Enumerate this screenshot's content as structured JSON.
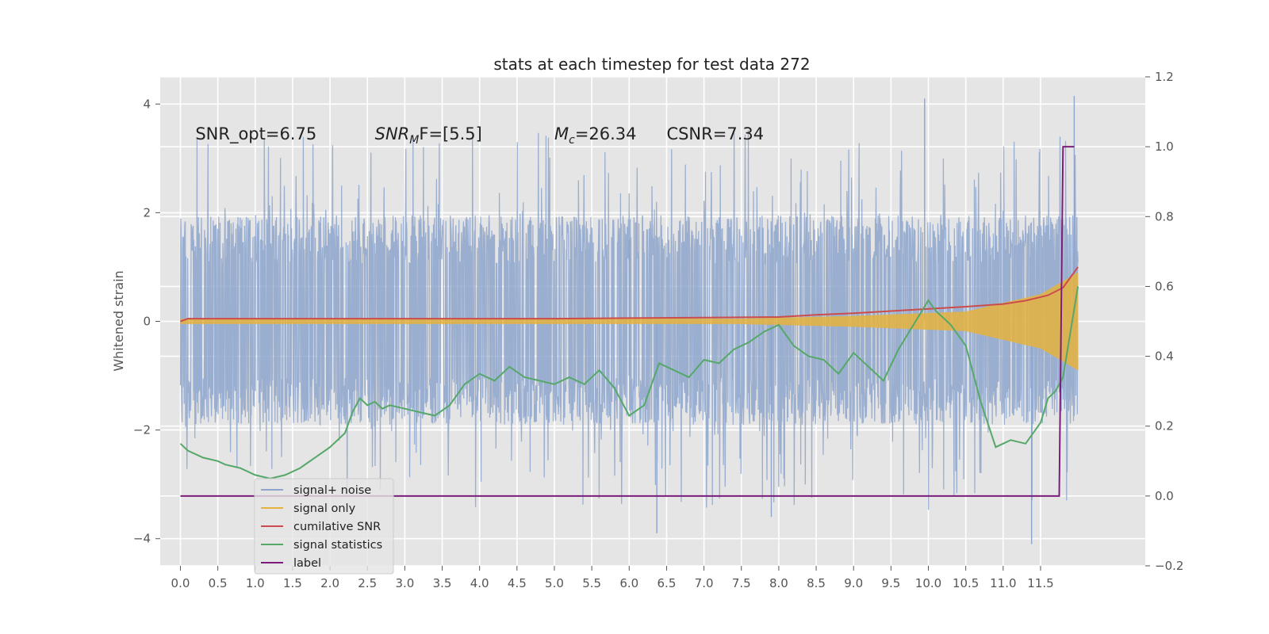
{
  "chart_data": {
    "type": "line",
    "title": "stats at each timestep for test data 272",
    "ylabel": "Whitened strain",
    "xlabel": "",
    "xlim": [
      -0.27,
      12.9
    ],
    "ylim": [
      -4.5,
      4.5
    ],
    "y2lim": [
      -0.2,
      1.2
    ],
    "grid": true,
    "legend_position": "lower-left",
    "x_ticks": [
      "0.0",
      "0.5",
      "1.0",
      "1.5",
      "2.0",
      "2.5",
      "3.0",
      "3.5",
      "4.0",
      "4.5",
      "5.0",
      "5.5",
      "6.0",
      "6.5",
      "7.0",
      "7.5",
      "8.0",
      "8.5",
      "9.0",
      "9.5",
      "10.0",
      "10.5",
      "11.0",
      "11.5"
    ],
    "y_ticks": [
      "4",
      "2",
      "0",
      "−2",
      "−4"
    ],
    "y2_ticks": [
      "1.2",
      "1.0",
      "0.8",
      "0.6",
      "0.4",
      "0.2",
      "0.0",
      "−0.2"
    ],
    "annotations": [
      {
        "id": "snr_opt",
        "text": "SNR_opt=6.75",
        "x": 0.2,
        "y": 3.35
      },
      {
        "id": "snr_mf",
        "prefix": "SNR",
        "sub": "M",
        "suffix": "F=[5.5]",
        "x": 2.6,
        "y": 3.35
      },
      {
        "id": "mc",
        "prefix": "M",
        "sub": "c",
        "suffix": "=26.34",
        "x": 5.0,
        "y": 3.35
      },
      {
        "id": "csnr",
        "text": "CSNR=7.34",
        "x": 6.5,
        "y": 3.35
      }
    ],
    "series": [
      {
        "name": "signal+ noise",
        "color": "#8da4cc",
        "axis": "left",
        "kind": "noise",
        "x_range": [
          0.0,
          12.0
        ],
        "typical_band": [
          -1.9,
          1.95
        ],
        "extreme_range": [
          -4.1,
          4.15
        ],
        "spikes": [
          {
            "x": 6.0,
            "y": 1.5
          },
          {
            "x": 6.0,
            "y": -1.0
          },
          {
            "x": 9.95,
            "y": 4.1
          },
          {
            "x": 11.95,
            "y": 4.15
          },
          {
            "x": 11.38,
            "y": -4.1
          },
          {
            "x": 6.37,
            "y": -3.9
          },
          {
            "x": 7.9,
            "y": -3.6
          }
        ]
      },
      {
        "name": "signal only",
        "color": "#e5b33d",
        "axis": "left",
        "kind": "chirp",
        "x_range": [
          0.0,
          12.0
        ],
        "envelope": [
          [
            0.0,
            0.05
          ],
          [
            7.5,
            0.05
          ],
          [
            9.0,
            0.1
          ],
          [
            10.5,
            0.18
          ],
          [
            11.5,
            0.5
          ],
          [
            12.0,
            0.9
          ]
        ]
      },
      {
        "name": "cumilative SNR",
        "color": "#cc4c4c",
        "axis": "left",
        "x": [
          0.0,
          0.1,
          1.0,
          2.0,
          3.0,
          4.0,
          5.0,
          6.0,
          7.0,
          8.0,
          8.5,
          9.0,
          9.5,
          10.0,
          10.5,
          11.0,
          11.3,
          11.6,
          11.8,
          12.0
        ],
        "y": [
          0.0,
          0.05,
          0.05,
          0.05,
          0.05,
          0.05,
          0.05,
          0.06,
          0.07,
          0.08,
          0.12,
          0.15,
          0.19,
          0.23,
          0.27,
          0.32,
          0.38,
          0.48,
          0.62,
          1.0
        ]
      },
      {
        "name": "signal statistics",
        "color": "#55a868",
        "axis": "right",
        "x": [
          0.0,
          0.1,
          0.3,
          0.5,
          0.6,
          0.8,
          1.0,
          1.2,
          1.4,
          1.6,
          1.8,
          2.0,
          2.2,
          2.3,
          2.4,
          2.5,
          2.6,
          2.7,
          2.8,
          3.0,
          3.2,
          3.4,
          3.6,
          3.8,
          4.0,
          4.2,
          4.4,
          4.6,
          4.8,
          5.0,
          5.2,
          5.4,
          5.6,
          5.8,
          6.0,
          6.2,
          6.4,
          6.6,
          6.8,
          7.0,
          7.2,
          7.4,
          7.6,
          7.8,
          8.0,
          8.2,
          8.4,
          8.6,
          8.8,
          9.0,
          9.2,
          9.4,
          9.6,
          9.8,
          10.0,
          10.1,
          10.3,
          10.5,
          10.7,
          10.9,
          11.1,
          11.3,
          11.5,
          11.6,
          11.7,
          11.8,
          11.9,
          12.0
        ],
        "y": [
          0.15,
          0.13,
          0.11,
          0.1,
          0.09,
          0.08,
          0.06,
          0.05,
          0.06,
          0.08,
          0.11,
          0.14,
          0.18,
          0.24,
          0.28,
          0.26,
          0.27,
          0.25,
          0.26,
          0.25,
          0.24,
          0.23,
          0.26,
          0.32,
          0.35,
          0.33,
          0.37,
          0.34,
          0.33,
          0.32,
          0.34,
          0.32,
          0.36,
          0.31,
          0.23,
          0.26,
          0.38,
          0.36,
          0.34,
          0.39,
          0.38,
          0.42,
          0.44,
          0.47,
          0.49,
          0.43,
          0.4,
          0.39,
          0.35,
          0.41,
          0.37,
          0.33,
          0.42,
          0.49,
          0.56,
          0.53,
          0.49,
          0.43,
          0.27,
          0.14,
          0.16,
          0.15,
          0.21,
          0.28,
          0.3,
          0.34,
          0.47,
          0.6
        ]
      },
      {
        "name": "label",
        "color": "#7b1c7b",
        "axis": "right",
        "x": [
          0.0,
          11.75,
          11.8,
          11.95
        ],
        "y": [
          0.0,
          0.0,
          1.0,
          1.0
        ]
      }
    ]
  }
}
